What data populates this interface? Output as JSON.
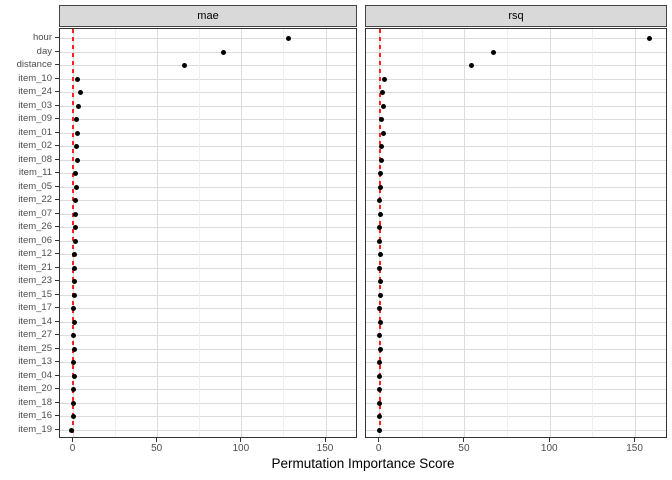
{
  "chart_data": {
    "type": "scatter",
    "title": "",
    "xlabel": "Permutation Importance Score",
    "ylabel": "",
    "facet_titles": [
      "mae",
      "rsq"
    ],
    "legend_position": "none",
    "grid": "on",
    "xlim": [
      -8,
      169
    ],
    "x_ticks": [
      0,
      50,
      100,
      150
    ],
    "x_minor_ticks": [
      25,
      75,
      125
    ],
    "categories": [
      "hour",
      "day",
      "distance",
      "item_10",
      "item_24",
      "item_03",
      "item_09",
      "item_01",
      "item_02",
      "item_08",
      "item_11",
      "item_05",
      "item_22",
      "item_07",
      "item_26",
      "item_06",
      "item_12",
      "item_21",
      "item_23",
      "item_15",
      "item_17",
      "item_14",
      "item_27",
      "item_25",
      "item_13",
      "item_04",
      "item_20",
      "item_18",
      "item_16",
      "item_19"
    ],
    "series": [
      {
        "name": "mae",
        "values": [
          128,
          89,
          66,
          2.5,
          4.0,
          3.1,
          1.9,
          2.1,
          1.9,
          2.1,
          1.3,
          1.7,
          1.1,
          1.3,
          1.1,
          1.1,
          0.9,
          0.5,
          0.5,
          0.7,
          0.3,
          0.5,
          0.1,
          0.5,
          0.3,
          0.7,
          0.1,
          -0.2,
          0.3,
          -1.4
        ]
      },
      {
        "name": "rsq",
        "values": [
          158,
          67,
          54,
          2.6,
          1.9,
          2.2,
          1.3,
          2.2,
          0.9,
          1.3,
          0.5,
          0.5,
          0.1,
          0.5,
          0.1,
          0.1,
          0.3,
          0.1,
          0.3,
          0.5,
          0.1,
          0.3,
          0.1,
          0.3,
          0.1,
          0.1,
          0.1,
          -0.1,
          0.1,
          0.1
        ]
      }
    ],
    "reference_line": {
      "x": 0,
      "style": "dashed",
      "color": "#FF2020"
    }
  },
  "style": {
    "strip_fill": "#D9D9D9",
    "strip_border": "#444444",
    "panel_border": "#333333",
    "grid_major": "#DCDCDC",
    "grid_minor": "#EFEFEF",
    "tick_color": "#333333",
    "tick_label_color": "#4D4D4D",
    "axis_title_color": "#000000",
    "ref_line_color": "#FF2020",
    "point_color": "#000000"
  }
}
